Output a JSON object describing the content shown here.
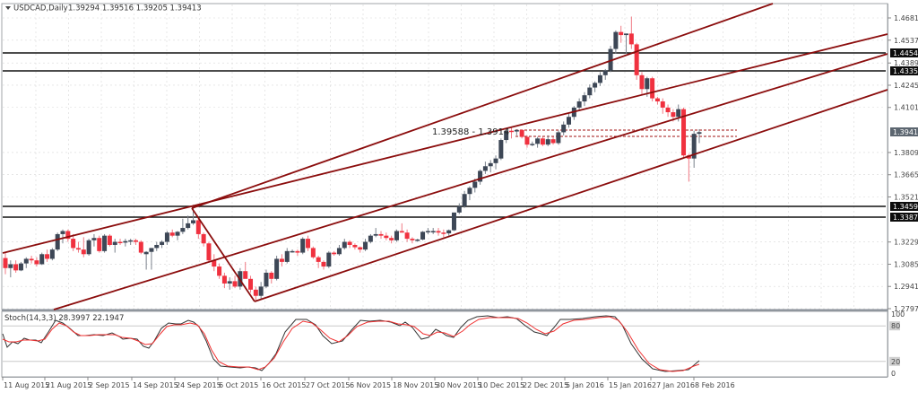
{
  "header": {
    "symbol_label": "USDCAD,Daily",
    "ohlc": "1.39294 1.39516 1.39205 1.39413",
    "menu_icon": "triangle-down-icon"
  },
  "annotation": {
    "text": "1.39588  - 1.3914"
  },
  "indicator": {
    "label": "Stoch(14,3,3) 28.3997 22.1947",
    "levels": [
      "100",
      "80",
      "20",
      "0"
    ]
  },
  "price_axis": {
    "ticks": [
      "1.46810",
      "1.45370",
      "1.43890",
      "1.42450",
      "1.41010",
      "1.38090",
      "1.36650",
      "1.35210",
      "1.32290",
      "1.30850",
      "1.29410",
      "1.27970"
    ],
    "tags": [
      {
        "value": "1.44545",
        "style": "black"
      },
      {
        "value": "1.43355",
        "style": "black"
      },
      {
        "value": "1.39413",
        "style": "grey"
      },
      {
        "value": "1.34597",
        "style": "black"
      },
      {
        "value": "1.33870",
        "style": "black"
      }
    ]
  },
  "time_axis": {
    "labels": [
      "11 Aug 2015",
      "21 Aug 2015",
      "2 Sep 2015",
      "14 Sep 2015",
      "24 Sep 2015",
      "6 Oct 2015",
      "16 Oct 2015",
      "27 Oct 2015",
      "6 Nov 2015",
      "18 Nov 2015",
      "30 Nov 2015",
      "10 Dec 2015",
      "22 Dec 2015",
      "5 Jan 2016",
      "15 Jan 2016",
      "27 Jan 2016",
      "8 Feb 2016"
    ]
  },
  "colors": {
    "bull": "#3d4756",
    "bear": "#f0313f",
    "channel": "#8b0d0d",
    "hline": "#111111",
    "stoch_main": "#333333",
    "stoch_signal": "#f03030",
    "grid": "#d8d8d8"
  },
  "chart_data": {
    "type": "candlestick",
    "title": "USDCAD,Daily",
    "ylim": [
      1.2797,
      1.4768
    ],
    "horizontal_lines": [
      1.44545,
      1.43355,
      1.34597,
      1.3387
    ],
    "dashed_lines": [
      1.39588,
      1.3914
    ],
    "last_price": 1.39413,
    "stochastic": {
      "params": "14,3,3",
      "main": 28.3997,
      "signal": 22.1947,
      "levels": [
        80,
        20
      ]
    },
    "x_labels": [
      "11 Aug 2015",
      "21 Aug 2015",
      "2 Sep 2015",
      "14 Sep 2015",
      "24 Sep 2015",
      "6 Oct 2015",
      "16 Oct 2015",
      "27 Oct 2015",
      "6 Nov 2015",
      "18 Nov 2015",
      "30 Nov 2015",
      "10 Dec 2015",
      "22 Dec 2015",
      "5 Jan 2016",
      "15 Jan 2016",
      "27 Jan 2016",
      "8 Feb 2016"
    ],
    "candles_approx": [
      [
        1.3125,
        1.316,
        1.302,
        1.306
      ],
      [
        1.306,
        1.311,
        1.3,
        1.3085
      ],
      [
        1.3085,
        1.311,
        1.303,
        1.3045
      ],
      [
        1.3045,
        1.31,
        1.304,
        1.309
      ],
      [
        1.309,
        1.313,
        1.306,
        1.312
      ],
      [
        1.312,
        1.314,
        1.309,
        1.311
      ],
      [
        1.311,
        1.313,
        1.307,
        1.3085
      ],
      [
        1.3085,
        1.316,
        1.308,
        1.315
      ],
      [
        1.315,
        1.318,
        1.31,
        1.312
      ],
      [
        1.312,
        1.319,
        1.311,
        1.318
      ],
      [
        1.318,
        1.329,
        1.317,
        1.328
      ],
      [
        1.328,
        1.331,
        1.322,
        1.33
      ],
      [
        1.33,
        1.331,
        1.323,
        1.325
      ],
      [
        1.325,
        1.328,
        1.317,
        1.319
      ],
      [
        1.319,
        1.323,
        1.316,
        1.318
      ],
      [
        1.318,
        1.326,
        1.313,
        1.315
      ],
      [
        1.315,
        1.325,
        1.314,
        1.324
      ],
      [
        1.324,
        1.328,
        1.32,
        1.3255
      ],
      [
        1.3255,
        1.327,
        1.316,
        1.317
      ],
      [
        1.317,
        1.328,
        1.316,
        1.327
      ],
      [
        1.327,
        1.328,
        1.32,
        1.321
      ],
      [
        1.321,
        1.325,
        1.316,
        1.323
      ],
      [
        1.323,
        1.325,
        1.321,
        1.3225
      ],
      [
        1.3225,
        1.325,
        1.32,
        1.3235
      ],
      [
        1.3235,
        1.325,
        1.321,
        1.324
      ],
      [
        1.324,
        1.325,
        1.321,
        1.323
      ],
      [
        1.323,
        1.324,
        1.315,
        1.316
      ],
      [
        1.315,
        1.317,
        1.305,
        1.3165
      ],
      [
        1.3165,
        1.319,
        1.305,
        1.319
      ],
      [
        1.319,
        1.323,
        1.317,
        1.321
      ],
      [
        1.321,
        1.324,
        1.319,
        1.323
      ],
      [
        1.323,
        1.33,
        1.321,
        1.329
      ],
      [
        1.329,
        1.331,
        1.326,
        1.327
      ],
      [
        1.327,
        1.33,
        1.324,
        1.3295
      ],
      [
        1.3295,
        1.338,
        1.328,
        1.332
      ],
      [
        1.332,
        1.34,
        1.331,
        1.335
      ],
      [
        1.335,
        1.347,
        1.334,
        1.337
      ],
      [
        1.337,
        1.338,
        1.325,
        1.328
      ],
      [
        1.328,
        1.329,
        1.32,
        1.322
      ],
      [
        1.322,
        1.323,
        1.31,
        1.311
      ],
      [
        1.311,
        1.315,
        1.304,
        1.307
      ],
      [
        1.307,
        1.309,
        1.299,
        1.301
      ],
      [
        1.301,
        1.303,
        1.293,
        1.296
      ],
      [
        1.296,
        1.3,
        1.292,
        1.2975
      ],
      [
        1.2975,
        1.301,
        1.293,
        1.294
      ],
      [
        1.294,
        1.306,
        1.292,
        1.304
      ],
      [
        1.304,
        1.31,
        1.301,
        1.299
      ],
      [
        1.299,
        1.301,
        1.29,
        1.292
      ],
      [
        1.292,
        1.294,
        1.285,
        1.288
      ],
      [
        1.288,
        1.297,
        1.286,
        1.294
      ],
      [
        1.294,
        1.305,
        1.293,
        1.303
      ],
      [
        1.303,
        1.304,
        1.296,
        1.299
      ],
      [
        1.299,
        1.314,
        1.298,
        1.312
      ],
      [
        1.312,
        1.315,
        1.307,
        1.31
      ],
      [
        1.31,
        1.319,
        1.309,
        1.317
      ],
      [
        1.317,
        1.318,
        1.316,
        1.317
      ],
      [
        1.317,
        1.318,
        1.314,
        1.316
      ],
      [
        1.316,
        1.326,
        1.315,
        1.325
      ],
      [
        1.325,
        1.327,
        1.317,
        1.319
      ],
      [
        1.319,
        1.32,
        1.312,
        1.313
      ],
      [
        1.313,
        1.314,
        1.306,
        1.31
      ],
      [
        1.31,
        1.311,
        1.305,
        1.307
      ],
      [
        1.307,
        1.317,
        1.306,
        1.316
      ],
      [
        1.316,
        1.317,
        1.314,
        1.315
      ],
      [
        1.315,
        1.321,
        1.314,
        1.319
      ],
      [
        1.319,
        1.325,
        1.318,
        1.323
      ],
      [
        1.323,
        1.324,
        1.319,
        1.321
      ],
      [
        1.321,
        1.322,
        1.318,
        1.3195
      ],
      [
        1.3195,
        1.32,
        1.316,
        1.318
      ],
      [
        1.318,
        1.325,
        1.317,
        1.323
      ],
      [
        1.323,
        1.328,
        1.322,
        1.327
      ],
      [
        1.327,
        1.332,
        1.326,
        1.328
      ],
      [
        1.328,
        1.33,
        1.325,
        1.327
      ],
      [
        1.327,
        1.329,
        1.324,
        1.3255
      ],
      [
        1.3255,
        1.327,
        1.322,
        1.324
      ],
      [
        1.324,
        1.331,
        1.323,
        1.33
      ],
      [
        1.33,
        1.335,
        1.329,
        1.329
      ],
      [
        1.329,
        1.331,
        1.323,
        1.325
      ],
      [
        1.325,
        1.326,
        1.322,
        1.324
      ],
      [
        1.324,
        1.325,
        1.323,
        1.3245
      ],
      [
        1.3245,
        1.33,
        1.324,
        1.3295
      ],
      [
        1.3295,
        1.332,
        1.328,
        1.33
      ],
      [
        1.33,
        1.332,
        1.328,
        1.33
      ],
      [
        1.33,
        1.332,
        1.327,
        1.329
      ],
      [
        1.329,
        1.331,
        1.326,
        1.3285
      ],
      [
        1.3285,
        1.331,
        1.327,
        1.3305
      ],
      [
        1.3305,
        1.342,
        1.33,
        1.342
      ],
      [
        1.342,
        1.348,
        1.341,
        1.346
      ],
      [
        1.346,
        1.356,
        1.345,
        1.354
      ],
      [
        1.354,
        1.359,
        1.35,
        1.358
      ],
      [
        1.358,
        1.364,
        1.355,
        1.362
      ],
      [
        1.362,
        1.37,
        1.36,
        1.369
      ],
      [
        1.369,
        1.375,
        1.367,
        1.372
      ],
      [
        1.372,
        1.376,
        1.368,
        1.374
      ],
      [
        1.374,
        1.379,
        1.37,
        1.377
      ],
      [
        1.377,
        1.39,
        1.376,
        1.389
      ],
      [
        1.389,
        1.396,
        1.387,
        1.395
      ],
      [
        1.395,
        1.397,
        1.39,
        1.3945
      ],
      [
        1.3945,
        1.396,
        1.392,
        1.3955
      ],
      [
        1.3955,
        1.396,
        1.39,
        1.391
      ],
      [
        1.391,
        1.392,
        1.384,
        1.386
      ],
      [
        1.386,
        1.388,
        1.385,
        1.3865
      ],
      [
        1.3865,
        1.391,
        1.384,
        1.39
      ],
      [
        1.39,
        1.391,
        1.385,
        1.386
      ],
      [
        1.386,
        1.392,
        1.385,
        1.3895
      ],
      [
        1.3895,
        1.391,
        1.386,
        1.387
      ],
      [
        1.387,
        1.395,
        1.386,
        1.394
      ],
      [
        1.394,
        1.401,
        1.392,
        1.399
      ],
      [
        1.399,
        1.406,
        1.397,
        1.404
      ],
      [
        1.404,
        1.411,
        1.402,
        1.41
      ],
      [
        1.41,
        1.416,
        1.408,
        1.414
      ],
      [
        1.414,
        1.42,
        1.411,
        1.418
      ],
      [
        1.418,
        1.425,
        1.416,
        1.423
      ],
      [
        1.423,
        1.427,
        1.42,
        1.426
      ],
      [
        1.426,
        1.433,
        1.424,
        1.431
      ],
      [
        1.431,
        1.435,
        1.428,
        1.434
      ],
      [
        1.434,
        1.45,
        1.433,
        1.448
      ],
      [
        1.448,
        1.46,
        1.445,
        1.459
      ],
      [
        1.459,
        1.463,
        1.452,
        1.457
      ],
      [
        1.457,
        1.458,
        1.445,
        1.458
      ],
      [
        1.458,
        1.469,
        1.448,
        1.451
      ],
      [
        1.451,
        1.452,
        1.428,
        1.431
      ],
      [
        1.431,
        1.433,
        1.418,
        1.422
      ],
      [
        1.422,
        1.43,
        1.417,
        1.429
      ],
      [
        1.429,
        1.43,
        1.414,
        1.416
      ],
      [
        1.416,
        1.417,
        1.412,
        1.414
      ],
      [
        1.414,
        1.416,
        1.406,
        1.41
      ],
      [
        1.41,
        1.412,
        1.404,
        1.407
      ],
      [
        1.407,
        1.409,
        1.401,
        1.404
      ],
      [
        1.404,
        1.412,
        1.401,
        1.409
      ],
      [
        1.409,
        1.41,
        1.378,
        1.379
      ],
      [
        1.379,
        1.38,
        1.362,
        1.377
      ],
      [
        1.377,
        1.395,
        1.371,
        1.393
      ],
      [
        1.393,
        1.396,
        1.387,
        1.3941
      ]
    ]
  }
}
